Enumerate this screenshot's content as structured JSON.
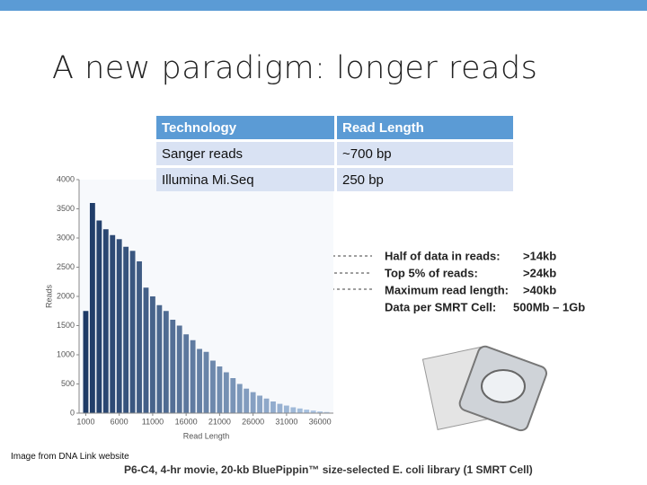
{
  "header": {
    "title": "A new paradigm: longer reads"
  },
  "table": {
    "columns": [
      "Technology",
      "Read Length"
    ],
    "rows": [
      [
        "Sanger reads",
        "~700 bp"
      ],
      [
        "Illumina Mi.Seq",
        "250 bp"
      ]
    ]
  },
  "figure": {
    "type": "histogram",
    "x_label": "Read Length",
    "y_label": "Reads",
    "bins": [
      500,
      1500,
      2500,
      3500,
      4500,
      5500,
      6500,
      7500,
      8500,
      9500,
      10500,
      11500,
      12500,
      13500,
      14500,
      15500,
      16500,
      17500,
      18500,
      19500,
      20500,
      21500,
      22500,
      23500,
      24500,
      25500,
      26500,
      27500,
      28500,
      29500,
      30500,
      31500,
      32500,
      33500,
      34500,
      35500,
      36500,
      37500
    ],
    "values": [
      1750,
      3600,
      3300,
      3150,
      3050,
      2980,
      2850,
      2780,
      2600,
      2150,
      2000,
      1850,
      1750,
      1600,
      1500,
      1350,
      1250,
      1100,
      1050,
      900,
      800,
      700,
      600,
      500,
      420,
      360,
      300,
      250,
      200,
      160,
      130,
      100,
      80,
      60,
      45,
      30,
      20
    ],
    "xlim": [
      0,
      38000
    ],
    "ylim": [
      0,
      4000
    ],
    "xticks": [
      1000,
      6000,
      11000,
      16000,
      21000,
      26000,
      31000,
      36000
    ],
    "yticks": [
      0,
      500,
      1000,
      1500,
      2000,
      2500,
      3000,
      3500,
      4000
    ],
    "colors": [
      "#1d3a66",
      "#b4cdea"
    ],
    "annotations": [
      {
        "label": "Half of data in reads:",
        "value": ">14kb"
      },
      {
        "label": "Top 5% of reads:",
        "value": ">24kb"
      },
      {
        "label": "Maximum read length:",
        "value": ">40kb"
      },
      {
        "label": "Data per SMRT Cell:",
        "value": "500Mb – 1Gb"
      }
    ],
    "caption": "P6-C4, 4-hr movie, 20-kb BluePippin™ size-selected E. coli library (1 SMRT Cell)"
  },
  "credit": "Image from DNA Link website"
}
